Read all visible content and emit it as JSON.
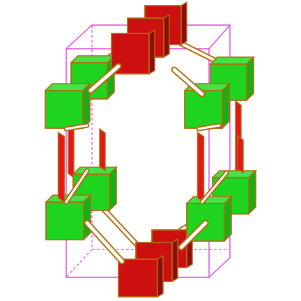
{
  "figure": {
    "description_visible_text": "",
    "colors": {
      "cell_edge": "#e040e0",
      "cube_face": "#1ed41e",
      "cube_top": "#44e244",
      "cube_side": "#16b016",
      "block_face": "#cc1010",
      "block_side": "#8f0a0a",
      "strut": "#d98a2a",
      "strut_fill": "#ffffff",
      "strut_pillar": "#e01818",
      "outline": "#b26a10"
    },
    "icons": [
      "unit-cell-frame",
      "green-cube-node",
      "red-block-node",
      "linker-strut"
    ]
  }
}
